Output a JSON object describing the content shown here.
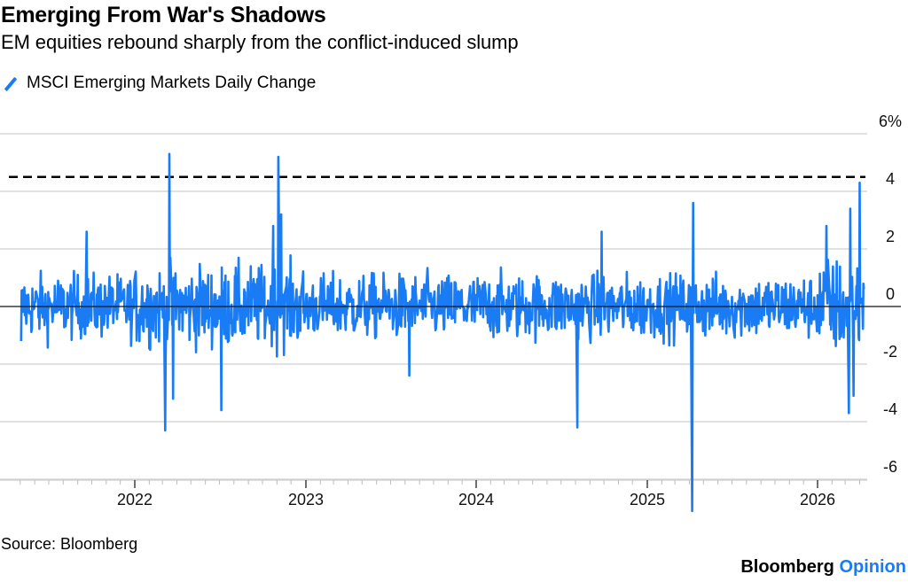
{
  "header": {
    "title": "Emerging From War's Shadows",
    "subtitle": "EM equities rebound sharply from the conflict-induced slump"
  },
  "legend": {
    "items": [
      {
        "label": "MSCI Emerging Markets Daily Change",
        "color": "#1a7cf5",
        "icon": "diagonal-line-icon"
      }
    ]
  },
  "footer": {
    "source": "Source: Bloomberg",
    "brand_primary": "Bloomberg",
    "brand_secondary": "Opinion",
    "brand_secondary_color": "#1a7cf5"
  },
  "chart_data": {
    "type": "line",
    "title": "Emerging From War's Shadows",
    "subtitle": "EM equities rebound sharply from the conflict-induced slump",
    "xlabel": "",
    "ylabel": "",
    "x_range": [
      "2021-05-01",
      "2026-04-10"
    ],
    "ylim": [
      -6,
      6
    ],
    "y_unit": "%",
    "y_ticks": [
      6,
      4,
      2,
      0,
      -2,
      -4,
      -6
    ],
    "y_tick_labels": [
      "6%",
      "4",
      "2",
      "0",
      "-2",
      "-4",
      "-6"
    ],
    "x_ticks": [
      "2022",
      "2023",
      "2024",
      "2025",
      "2026"
    ],
    "x_minor_ticks": "monthly",
    "grid": true,
    "legend_position": "top-left",
    "reference_line": {
      "value": 4.5,
      "style": "dashed",
      "color": "#000000"
    },
    "zero_line": true,
    "series": [
      {
        "name": "MSCI Emerging Markets Daily Change",
        "color": "#1a7cf5",
        "frequency": "daily",
        "notable_points": [
          {
            "date": "2021-05-03",
            "value": -1.2
          },
          {
            "date": "2021-09-20",
            "value": 2.6
          },
          {
            "date": "2022-03-07",
            "value": -4.3
          },
          {
            "date": "2022-03-16",
            "value": 5.3
          },
          {
            "date": "2022-03-24",
            "value": -3.2
          },
          {
            "date": "2022-07-05",
            "value": -3.6
          },
          {
            "date": "2022-10-24",
            "value": 2.8
          },
          {
            "date": "2022-11-04",
            "value": 5.2
          },
          {
            "date": "2022-11-10",
            "value": 3.2
          },
          {
            "date": "2023-08-10",
            "value": -2.4
          },
          {
            "date": "2024-08-05",
            "value": -4.2
          },
          {
            "date": "2024-09-26",
            "value": 2.6
          },
          {
            "date": "2025-04-07",
            "value": -7.1
          },
          {
            "date": "2025-04-09",
            "value": 3.6
          },
          {
            "date": "2026-01-20",
            "value": 2.8
          },
          {
            "date": "2026-03-09",
            "value": -3.7
          },
          {
            "date": "2026-03-12",
            "value": 3.4
          },
          {
            "date": "2026-03-19",
            "value": -3.1
          },
          {
            "date": "2026-04-01",
            "value": 4.3
          },
          {
            "date": "2026-04-10",
            "value": 0.6
          }
        ]
      }
    ]
  }
}
